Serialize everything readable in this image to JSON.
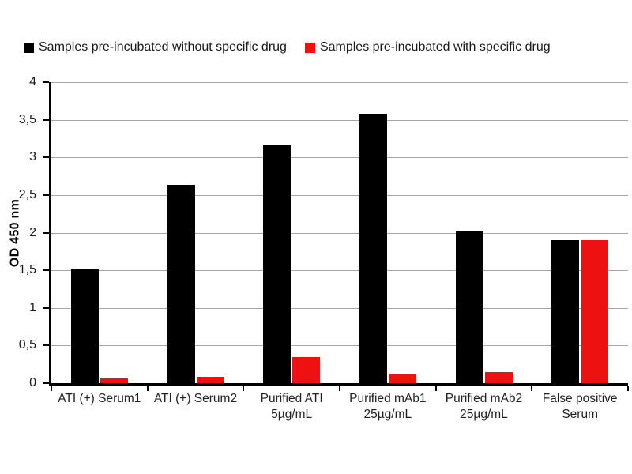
{
  "chart_data": {
    "type": "bar",
    "title": "",
    "ylabel": "OD 450 nm",
    "xlabel": "",
    "ylim": [
      0,
      4
    ],
    "ytick_step": 0.5,
    "ytick_labels": [
      "0",
      "0,5",
      "1",
      "1,5",
      "2",
      "2,5",
      "3",
      "3,5",
      "4"
    ],
    "grid": true,
    "legend_position": "top",
    "categories": [
      "ATI (+) Serum1",
      "ATI (+) Serum2",
      "Purified ATI\n5µg/mL",
      "Purified mAb1\n25µg/mL",
      "Purified mAb2\n25µg/mL",
      "False positive\nSerum"
    ],
    "series": [
      {
        "key": "without-drug",
        "name": "Samples pre-incubated without specific drug",
        "color": "#000000",
        "values": [
          1.51,
          2.63,
          3.16,
          3.58,
          2.02,
          1.9
        ]
      },
      {
        "key": "with-drug",
        "name": "Samples pre-incubated with specific drug",
        "color": "#ee1111",
        "values": [
          0.06,
          0.08,
          0.35,
          0.13,
          0.15,
          1.9
        ]
      }
    ]
  }
}
